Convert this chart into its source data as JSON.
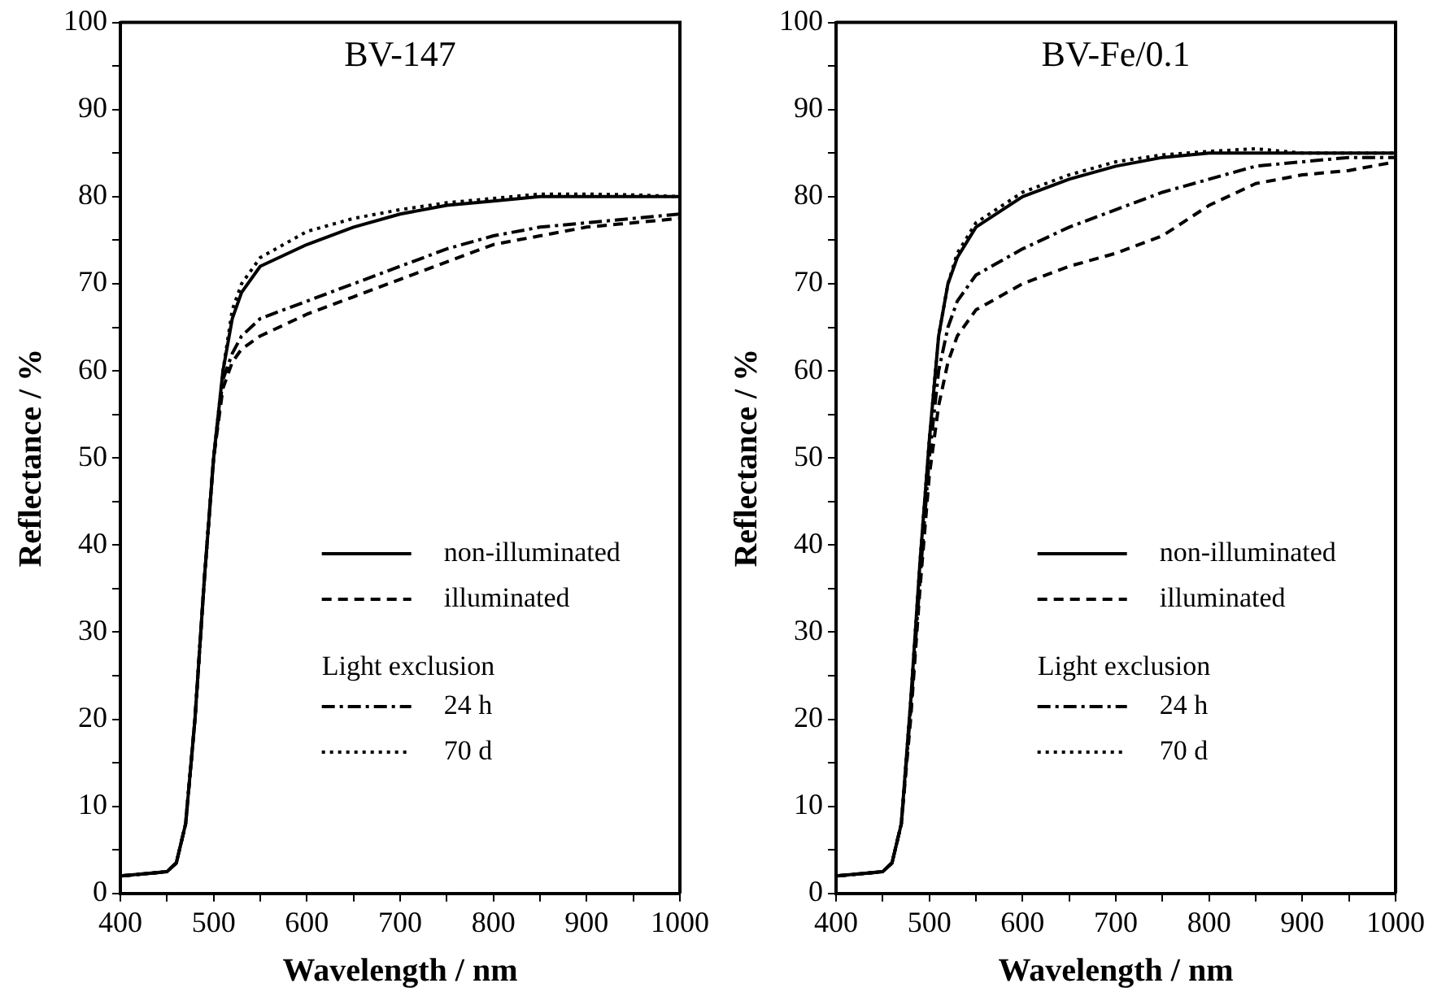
{
  "chart_data": [
    {
      "type": "line",
      "title": "BV-147",
      "xlabel": "Wavelength / nm",
      "ylabel": "Reflectance / %",
      "legend": "bottom right",
      "legend_title": "Light exclusion",
      "grid": false,
      "marker": "none",
      "x": [
        400,
        450,
        460,
        470,
        480,
        490,
        500,
        510,
        520,
        530,
        550,
        600,
        650,
        700,
        750,
        800,
        850,
        900,
        950,
        1000
      ],
      "xlim": [
        400,
        1000
      ],
      "ylim": [
        0,
        100
      ],
      "xticks": [
        400,
        {
          "value": 450,
          "label": null
        },
        500,
        {
          "value": 550,
          "label": null
        },
        600,
        {
          "value": 650,
          "label": null
        },
        700,
        {
          "value": 750,
          "label": null
        },
        800,
        {
          "value": 850,
          "label": null
        },
        900,
        {
          "value": 950,
          "label": null
        },
        1000
      ],
      "yticks": [
        0,
        {
          "value": 5,
          "label": null
        },
        10,
        {
          "value": 15,
          "label": null
        },
        20,
        {
          "value": 25,
          "label": null
        },
        30,
        {
          "value": 35,
          "label": null
        },
        40,
        {
          "value": 45,
          "label": null
        },
        50,
        {
          "value": 55,
          "label": null
        },
        60,
        {
          "value": 65,
          "label": null
        },
        70,
        {
          "value": 75,
          "label": null
        },
        80,
        {
          "value": 85,
          "label": null
        },
        90,
        {
          "value": 95,
          "label": null
        },
        100
      ],
      "series": [
        {
          "name": "non-illuminated",
          "color": "#000000",
          "line_style": "solid",
          "values": [
            2,
            2.5,
            3.5,
            8,
            20,
            36,
            50,
            60,
            66,
            69,
            72,
            74.5,
            76.5,
            78,
            79,
            79.5,
            80,
            80,
            80,
            80
          ]
        },
        {
          "name": "illuminated",
          "color": "#000000",
          "line_style": "dashed",
          "values": [
            2,
            2.5,
            3.5,
            8,
            20,
            36,
            50,
            58,
            61,
            62.5,
            64,
            66.5,
            68.5,
            70.5,
            72.5,
            74.5,
            75.5,
            76.5,
            77,
            77.5
          ]
        },
        {
          "name": "24 h",
          "color": "#000000",
          "line_style": "dashdot",
          "values": [
            2,
            2.5,
            3.5,
            8,
            20,
            36,
            50,
            59,
            62,
            64,
            66,
            68,
            70,
            72,
            74,
            75.5,
            76.5,
            77,
            77.5,
            78
          ]
        },
        {
          "name": "70 d",
          "color": "#000000",
          "line_style": "dotted",
          "values": [
            2,
            2.5,
            3.5,
            8,
            20,
            36,
            50,
            60,
            67,
            70,
            73,
            76,
            77.5,
            78.5,
            79.3,
            79.8,
            80.3,
            80.3,
            80.2,
            80
          ]
        }
      ]
    },
    {
      "type": "line",
      "title": "BV-Fe/0.1",
      "xlabel": "Wavelength / nm",
      "ylabel": "Reflectance / %",
      "legend": "bottom right",
      "legend_title": "Light exclusion",
      "grid": false,
      "marker": "none",
      "x": [
        400,
        450,
        460,
        470,
        480,
        490,
        500,
        510,
        520,
        530,
        550,
        600,
        650,
        700,
        750,
        800,
        850,
        900,
        950,
        1000
      ],
      "xlim": [
        400,
        1000
      ],
      "ylim": [
        0,
        100
      ],
      "xticks": [
        400,
        {
          "value": 450,
          "label": null
        },
        500,
        {
          "value": 550,
          "label": null
        },
        600,
        {
          "value": 650,
          "label": null
        },
        700,
        {
          "value": 750,
          "label": null
        },
        800,
        {
          "value": 850,
          "label": null
        },
        900,
        {
          "value": 950,
          "label": null
        },
        1000
      ],
      "yticks": [
        0,
        {
          "value": 5,
          "label": null
        },
        10,
        {
          "value": 15,
          "label": null
        },
        20,
        {
          "value": 25,
          "label": null
        },
        30,
        {
          "value": 35,
          "label": null
        },
        40,
        {
          "value": 45,
          "label": null
        },
        50,
        {
          "value": 55,
          "label": null
        },
        60,
        {
          "value": 65,
          "label": null
        },
        70,
        {
          "value": 75,
          "label": null
        },
        80,
        {
          "value": 85,
          "label": null
        },
        90,
        {
          "value": 95,
          "label": null
        },
        100
      ],
      "series": [
        {
          "name": "non-illuminated",
          "color": "#000000",
          "line_style": "solid",
          "values": [
            2,
            2.5,
            3.5,
            8,
            22,
            38,
            52,
            64,
            70,
            73,
            76.5,
            80,
            82,
            83.5,
            84.5,
            85,
            85,
            85,
            85,
            85
          ]
        },
        {
          "name": "illuminated",
          "color": "#000000",
          "line_style": "dashed",
          "values": [
            2,
            2.5,
            3.5,
            8,
            20,
            35,
            48,
            56,
            61,
            64,
            67,
            70,
            72,
            73.5,
            75.5,
            79,
            81.5,
            82.5,
            83,
            84
          ]
        },
        {
          "name": "24 h",
          "color": "#000000",
          "line_style": "dashdot",
          "values": [
            2,
            2.5,
            3.5,
            8,
            21,
            36,
            50,
            60,
            65,
            68,
            71,
            74,
            76.5,
            78.5,
            80.5,
            82,
            83.5,
            84,
            84.5,
            84.5
          ]
        },
        {
          "name": "70 d",
          "color": "#000000",
          "line_style": "dotted",
          "values": [
            2,
            2.5,
            3.5,
            8,
            22,
            38,
            52,
            64,
            70,
            73.5,
            77,
            80.5,
            82.5,
            84,
            84.8,
            85.2,
            85.5,
            85,
            85,
            85
          ]
        }
      ]
    }
  ]
}
